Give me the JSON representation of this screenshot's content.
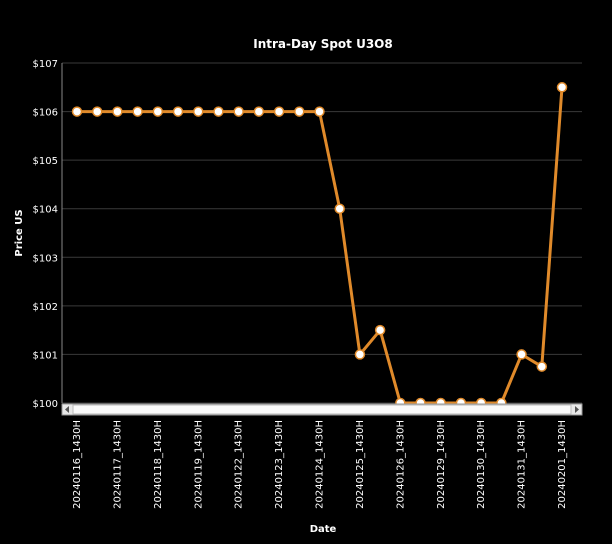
{
  "chart_data": {
    "type": "line",
    "title": "Intra-Day Spot U3O8",
    "x_label": "Date",
    "y_label": "Price US",
    "categories": [
      "20240116_1430H",
      null,
      "20240117_1430H",
      null,
      "20240118_1430H",
      null,
      "20240119_1430H",
      null,
      "20240122_1430H",
      null,
      "20240123_1430H",
      null,
      "20240124_1430H",
      null,
      "20240125_1430H",
      null,
      "20240126_1430H",
      null,
      "20240129_1430H",
      null,
      "20240130_1430H",
      null,
      "20240131_1430H",
      null,
      "20240201_1430H"
    ],
    "series": [
      {
        "name": "Price US",
        "color": "#e08a2a",
        "values": [
          106,
          106,
          106,
          106,
          106,
          106,
          106,
          106,
          106,
          106,
          106,
          106,
          106,
          104,
          101,
          101.5,
          100,
          100,
          100,
          100,
          100,
          100,
          101,
          100.75,
          106.5
        ]
      }
    ],
    "ylim": [
      100,
      107
    ],
    "yticks": [
      {
        "value": 100,
        "label": "$100"
      },
      {
        "value": 101,
        "label": "$101"
      },
      {
        "value": 102,
        "label": "$102"
      },
      {
        "value": 103,
        "label": "$103"
      },
      {
        "value": 104,
        "label": "$104"
      },
      {
        "value": 105,
        "label": "$105"
      },
      {
        "value": 106,
        "label": "$106"
      },
      {
        "value": 107,
        "label": "$107"
      }
    ],
    "grid": true
  }
}
